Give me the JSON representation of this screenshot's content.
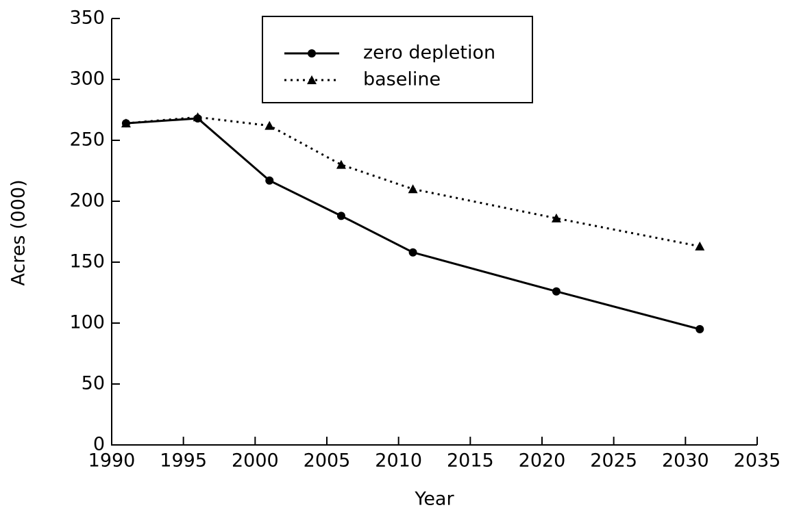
{
  "chart_data": {
    "type": "line",
    "x_label": "Year",
    "y_label": "Acres (000)",
    "x": [
      1991,
      1996,
      2001,
      2006,
      2011,
      2021,
      2031
    ],
    "series": [
      {
        "name": "zero depletion",
        "color": "#000000",
        "line_style": "solid",
        "marker": "circle",
        "values": [
          264,
          268,
          217,
          188,
          158,
          126,
          95
        ]
      },
      {
        "name": "baseline",
        "color": "#000000",
        "line_style": "dotted",
        "marker": "triangle",
        "values": [
          264,
          269,
          262,
          230,
          210,
          186,
          163
        ]
      }
    ],
    "xlim": [
      1990,
      2035
    ],
    "xticks": [
      1990,
      1995,
      2000,
      2005,
      2010,
      2015,
      2020,
      2025,
      2030,
      2035
    ],
    "ylim": [
      0,
      350
    ],
    "yticks": [
      0,
      50,
      100,
      150,
      200,
      250,
      300,
      350
    ],
    "grid": false,
    "legend": "top"
  }
}
